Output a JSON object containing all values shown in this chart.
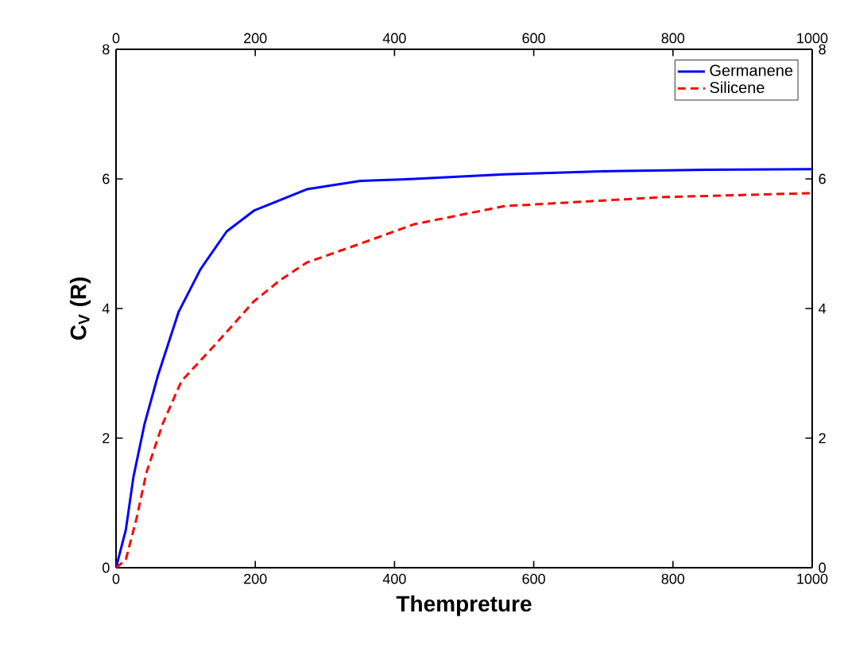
{
  "chart_data": {
    "type": "line",
    "xlabel": "Thempreture",
    "ylabel": "C$_{V}$ (R)",
    "xlim": [
      0,
      1000
    ],
    "ylim": [
      0,
      8
    ],
    "xticks": [
      0,
      200,
      400,
      600,
      800,
      1000
    ],
    "yticks": [
      0,
      2,
      4,
      6,
      8
    ],
    "x2lim": [
      0,
      1000
    ],
    "x2ticks": [
      0,
      200,
      400,
      600,
      800,
      1000
    ],
    "y2lim": [
      0,
      8
    ],
    "y2ticks": [
      0,
      2,
      4,
      6,
      8
    ],
    "legend": "top right",
    "grid": false,
    "series": [
      {
        "name": "Germanene",
        "color": "#0000ff",
        "line_style": "solid",
        "x": [
          0,
          14,
          25,
          41,
          60,
          90,
          121,
          159,
          198,
          274,
          351,
          428,
          558,
          710,
          850,
          1000
        ],
        "values": [
          0,
          0.58,
          1.4,
          2.22,
          2.96,
          3.95,
          4.6,
          5.19,
          5.51,
          5.84,
          5.97,
          6.0,
          6.07,
          6.12,
          6.14,
          6.15
        ]
      },
      {
        "name": "Silicene",
        "color": "#ff0000",
        "line_style": "dashed",
        "x": [
          0,
          14,
          29,
          44,
          67,
          94,
          144,
          198,
          236,
          274,
          351,
          428,
          558,
          788,
          1000
        ],
        "values": [
          0,
          0.12,
          0.74,
          1.48,
          2.22,
          2.88,
          3.46,
          4.11,
          4.44,
          4.71,
          5.0,
          5.3,
          5.58,
          5.72,
          5.78
        ]
      }
    ]
  }
}
